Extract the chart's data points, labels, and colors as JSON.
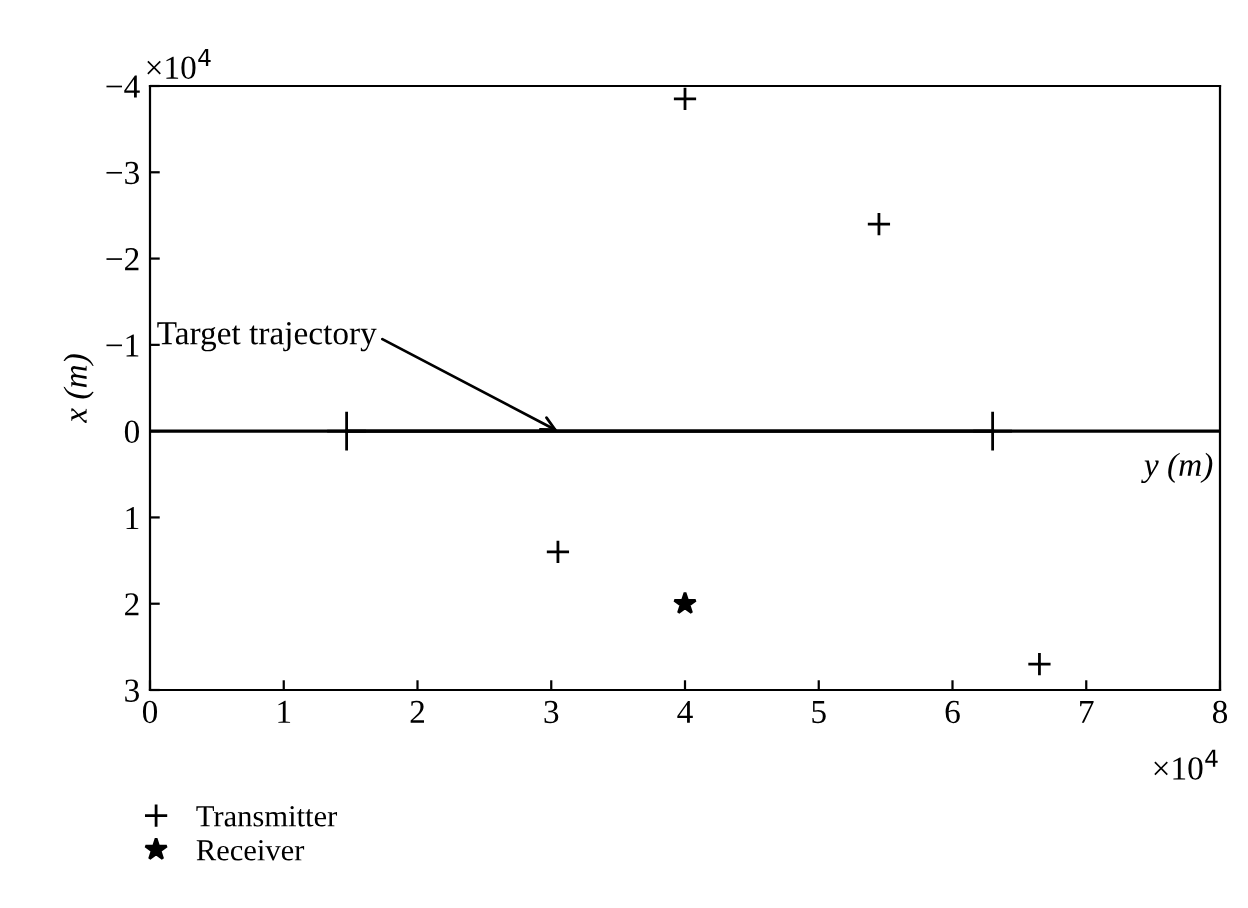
{
  "chart_data": {
    "type": "scatter",
    "ylabel": "x (m)",
    "xlim": [
      0,
      8
    ],
    "xticks": [
      0,
      1,
      2,
      3,
      4,
      5,
      6,
      7,
      8
    ],
    "ylim": [
      3,
      -4
    ],
    "yticks": [
      3,
      2,
      1,
      0,
      {
        "value": -1,
        "label": "−1"
      },
      {
        "value": -2,
        "label": "−2"
      },
      {
        "value": -3,
        "label": "−3"
      },
      {
        "value": -4,
        "label": "−4"
      }
    ],
    "series": [
      {
        "name": "Transmitter",
        "color": "#000000",
        "marker": "cross",
        "x": [
          4.0,
          5.45,
          3.05,
          6.65
        ],
        "values": [
          -3.85,
          -2.4,
          1.4,
          2.7
        ]
      },
      {
        "name": "Receiver",
        "color": "#000000",
        "marker": "star",
        "x": [
          4.0
        ],
        "values": [
          2.0
        ]
      },
      {
        "type": "line",
        "color": "#000000",
        "marker": "cross",
        "x": [
          1.47,
          6.3
        ],
        "values": [
          0,
          0
        ]
      }
    ],
    "ref_lines": [
      {
        "axis": "y",
        "value": 0,
        "label": "y (m)",
        "color": "#000000"
      }
    ],
    "annotations": [
      {
        "text": "Target trajectory",
        "x": 3.05,
        "y": 0
      },
      "×10$^{4}$",
      "×10$^{4}$"
    ],
    "legend": "bottom left",
    "grid": false
  }
}
